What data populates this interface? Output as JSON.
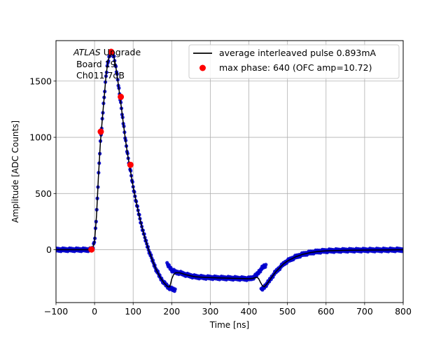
{
  "chart_data": {
    "type": "line",
    "title": "",
    "xlabel": "Time [ns]",
    "ylabel": "Amplitude [ADC Counts]",
    "xlim": [
      -100,
      800
    ],
    "ylim": [
      -470,
      1860
    ],
    "xticks": [
      -100,
      0,
      100,
      200,
      300,
      400,
      500,
      600,
      700,
      800
    ],
    "yticks": [
      0,
      500,
      1000,
      1500
    ],
    "grid": true,
    "legend_position": "top-right",
    "annotation": {
      "italic": "ATLAS",
      "rest": " Upgrade",
      "line2": " Board 19",
      "line3": " Ch011 7dB"
    },
    "series": [
      {
        "name": "average interleaved pulse 0.893mA",
        "style": "line",
        "color": "#000000",
        "x": [
          -100,
          -10,
          -5,
          0,
          5,
          10,
          15,
          20,
          25,
          30,
          35,
          40,
          45,
          50,
          55,
          60,
          65,
          70,
          75,
          80,
          85,
          90,
          95,
          100,
          110,
          120,
          130,
          140,
          150,
          160,
          170,
          180,
          190,
          195,
          200,
          205,
          210,
          220,
          240,
          260,
          280,
          300,
          320,
          340,
          360,
          380,
          400,
          410,
          420,
          425,
          430,
          435,
          440,
          450,
          460,
          470,
          480,
          490,
          500,
          520,
          540,
          560,
          580,
          600,
          650,
          700,
          750,
          800
        ],
        "y": [
          0,
          0,
          10,
          80,
          300,
          650,
          950,
          1160,
          1360,
          1560,
          1680,
          1740,
          1760,
          1720,
          1630,
          1510,
          1380,
          1250,
          1110,
          980,
          860,
          760,
          660,
          560,
          390,
          240,
          110,
          0,
          -95,
          -180,
          -245,
          -295,
          -330,
          -330,
          -260,
          -220,
          -205,
          -205,
          -225,
          -240,
          -245,
          -248,
          -250,
          -252,
          -254,
          -256,
          -258,
          -255,
          -245,
          -255,
          -290,
          -320,
          -330,
          -290,
          -240,
          -195,
          -160,
          -125,
          -100,
          -65,
          -40,
          -25,
          -15,
          -10,
          -5,
          -3,
          -2,
          0
        ]
      },
      {
        "name": "",
        "style": "points",
        "color": "#0000cd",
        "segments": [
          {
            "x": [
              -100,
              -10,
              -5,
              0,
              5,
              10,
              15,
              20,
              25,
              30,
              35,
              40,
              45,
              50,
              55,
              60,
              65,
              70,
              75,
              80,
              85,
              90,
              95,
              100,
              110,
              120,
              130,
              140,
              150,
              160,
              170,
              180,
              190,
              200,
              210
            ],
            "y": [
              0,
              0,
              10,
              80,
              300,
              650,
              950,
              1160,
              1360,
              1560,
              1680,
              1740,
              1760,
              1720,
              1630,
              1510,
              1380,
              1250,
              1110,
              980,
              860,
              760,
              660,
              560,
              390,
              240,
              110,
              0,
              -95,
              -180,
              -245,
              -295,
              -330,
              -350,
              -360
            ]
          },
          {
            "x": [
              188,
              195,
              200,
              210,
              220,
              240,
              260,
              280,
              300,
              320,
              340,
              360,
              380,
              400,
              410,
              420,
              425,
              430,
              435,
              440,
              445
            ],
            "y": [
              -130,
              -155,
              -180,
              -200,
              -205,
              -225,
              -240,
              -245,
              -248,
              -250,
              -252,
              -254,
              -256,
              -258,
              -250,
              -225,
              -200,
              -180,
              -160,
              -145,
              -140
            ]
          },
          {
            "x": [
              432,
              440,
              450,
              460,
              470,
              480,
              490,
              500,
              520,
              540,
              560,
              580,
              600,
              650,
              700,
              750,
              800
            ],
            "y": [
              -360,
              -330,
              -290,
              -240,
              -195,
              -160,
              -125,
              -100,
              -65,
              -40,
              -25,
              -15,
              -10,
              -5,
              -3,
              -2,
              0
            ]
          }
        ]
      },
      {
        "name": "max phase: 640 (OFC amp=10.72)",
        "style": "markers",
        "color": "#ff0000",
        "x": [
          -8,
          16,
          43,
          68,
          93
        ],
        "y": [
          2,
          1050,
          1760,
          1360,
          755
        ]
      }
    ]
  }
}
